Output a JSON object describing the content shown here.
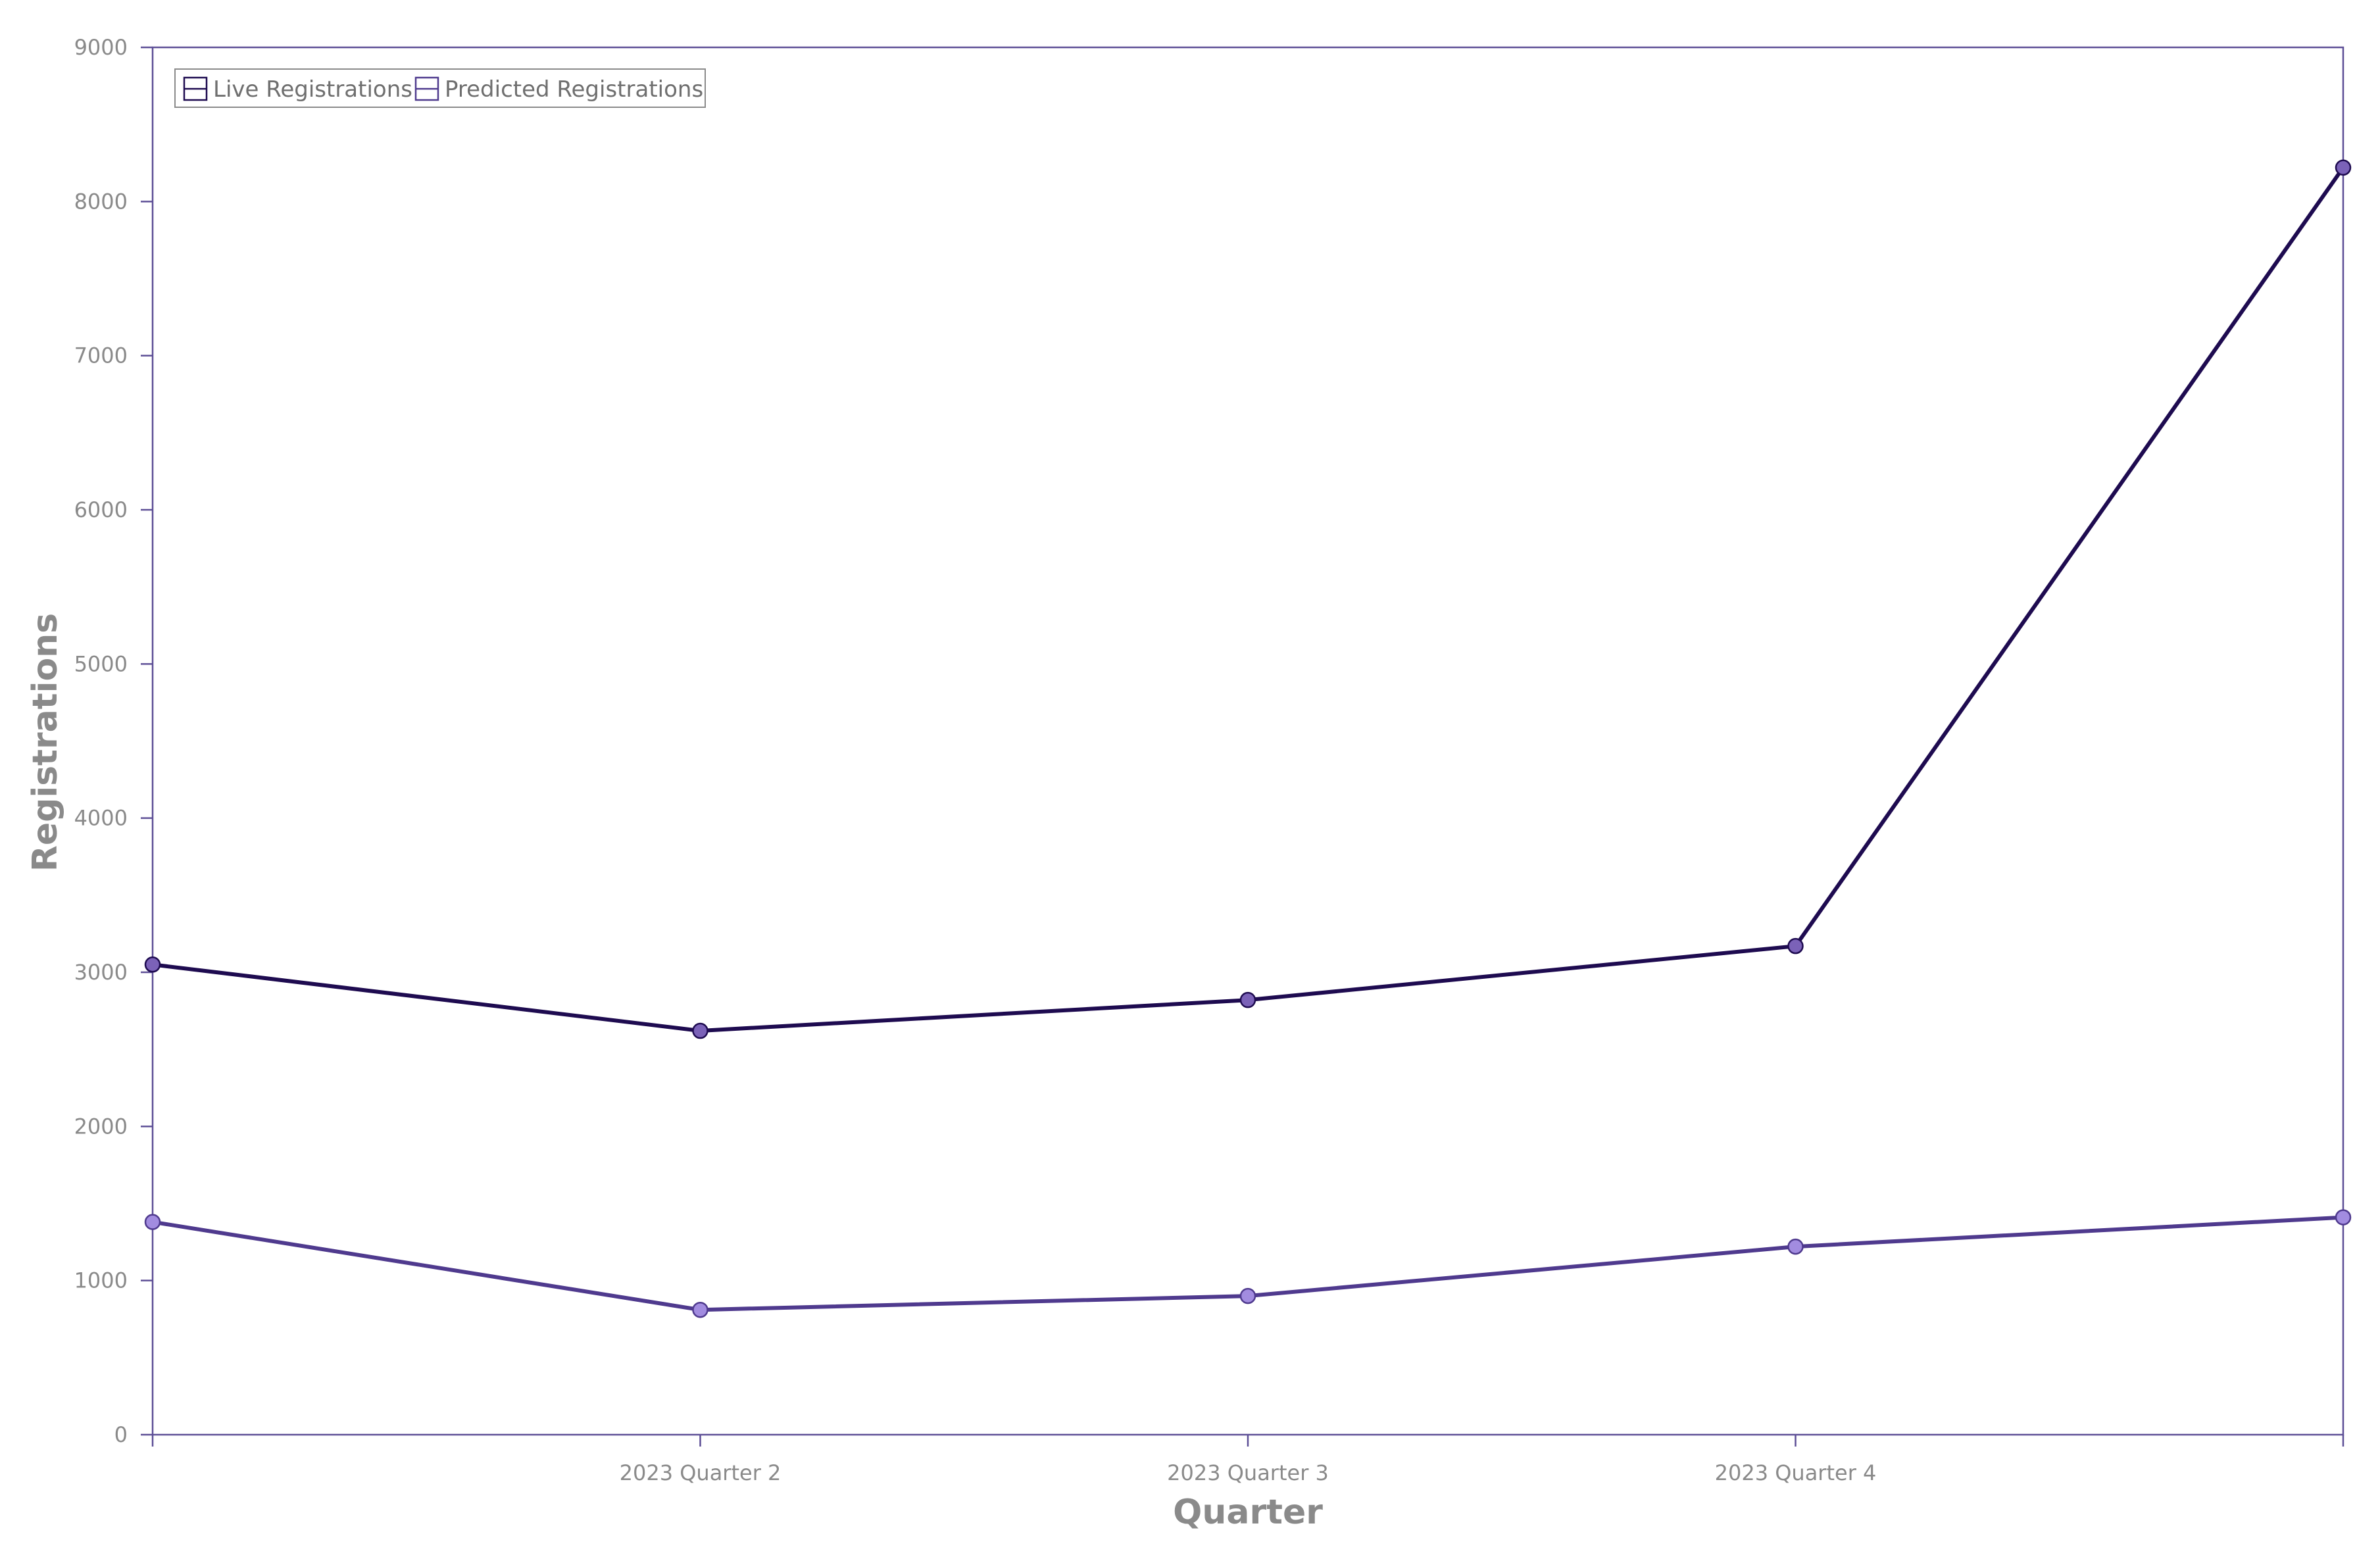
{
  "colors": {
    "axis": "#5d4f96",
    "tick_text": "#8a8a8a",
    "live_line": "#1e0b50",
    "live_marker": "#7b62b8",
    "predicted_line": "#4f3a8e",
    "predicted_marker": "#a28ce0",
    "legend_border": "#8a8a8a"
  },
  "chart_data": {
    "type": "line",
    "title": "",
    "xlabel": "Quarter",
    "ylabel": "Registrations",
    "x": [
      1,
      2,
      3,
      4,
      5
    ],
    "x_tick_labels": [
      "",
      "2023 Quarter 2",
      "2023 Quarter 3",
      "2023 Quarter 4",
      ""
    ],
    "xlim": [
      1,
      5
    ],
    "ylim": [
      0,
      9000
    ],
    "y_ticks": [
      0,
      1000,
      2000,
      3000,
      4000,
      5000,
      6000,
      7000,
      8000,
      9000
    ],
    "grid": false,
    "legend_position": "top-left",
    "series": [
      {
        "name": "Live Registrations",
        "values": [
          3050,
          2620,
          2820,
          3170,
          8220
        ],
        "color": "#1e0b50",
        "marker_color": "#7b62b8"
      },
      {
        "name": "Predicted Registrations",
        "values": [
          1380,
          810,
          900,
          1220,
          1410
        ],
        "color": "#4f3a8e",
        "marker_color": "#a28ce0"
      }
    ]
  }
}
